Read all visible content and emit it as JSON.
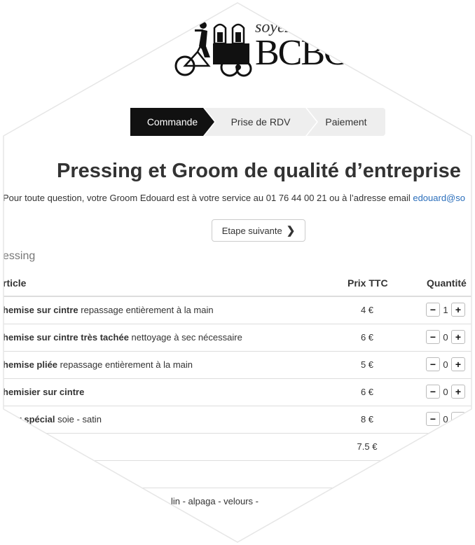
{
  "brand": {
    "script": "soyez",
    "wordmark": "BCBG"
  },
  "steps": [
    {
      "label": "Commande",
      "active": true
    },
    {
      "label": "Prise de RDV",
      "active": false
    },
    {
      "label": "Paiement",
      "active": false
    }
  ],
  "title": "Pressing et Groom de qualité d’entreprise",
  "info": {
    "text": "Pour toute question, votre Groom Edouard est à votre service au 01 76 44 00 21 ou à l’adresse email ",
    "email": "edouard@so"
  },
  "next_button": {
    "label": "Etape suivante"
  },
  "section": "essing",
  "table": {
    "headers": {
      "article": "rticle",
      "price": "Prix TTC",
      "quantity": "Quantité"
    },
    "rows": [
      {
        "name": "hemise sur cintre",
        "desc": " repassage entièrement à la main",
        "price": "4 €",
        "qty": "1"
      },
      {
        "name": "hemise sur cintre très tachée",
        "desc": " nettoyage à sec nécessaire",
        "price": "6 €",
        "qty": "0"
      },
      {
        "name": "hemise pliée",
        "desc": " repassage entièrement à la main",
        "price": "5 €",
        "qty": "0"
      },
      {
        "name": "hemisier sur cintre",
        "desc": "",
        "price": "6 €",
        "qty": "0"
      },
      {
        "name": "isier spécial",
        "desc": " soie - satin",
        "price": "8 €",
        "qty": "0"
      },
      {
        "name": "",
        "desc": "",
        "price": "7.5 €",
        "qty": ""
      },
      {
        "name": "",
        "desc": "",
        "price": "",
        "qty": ""
      },
      {
        "name": "",
        "desc": "lin - alpaga - velours -",
        "price": "",
        "qty": ""
      }
    ]
  }
}
